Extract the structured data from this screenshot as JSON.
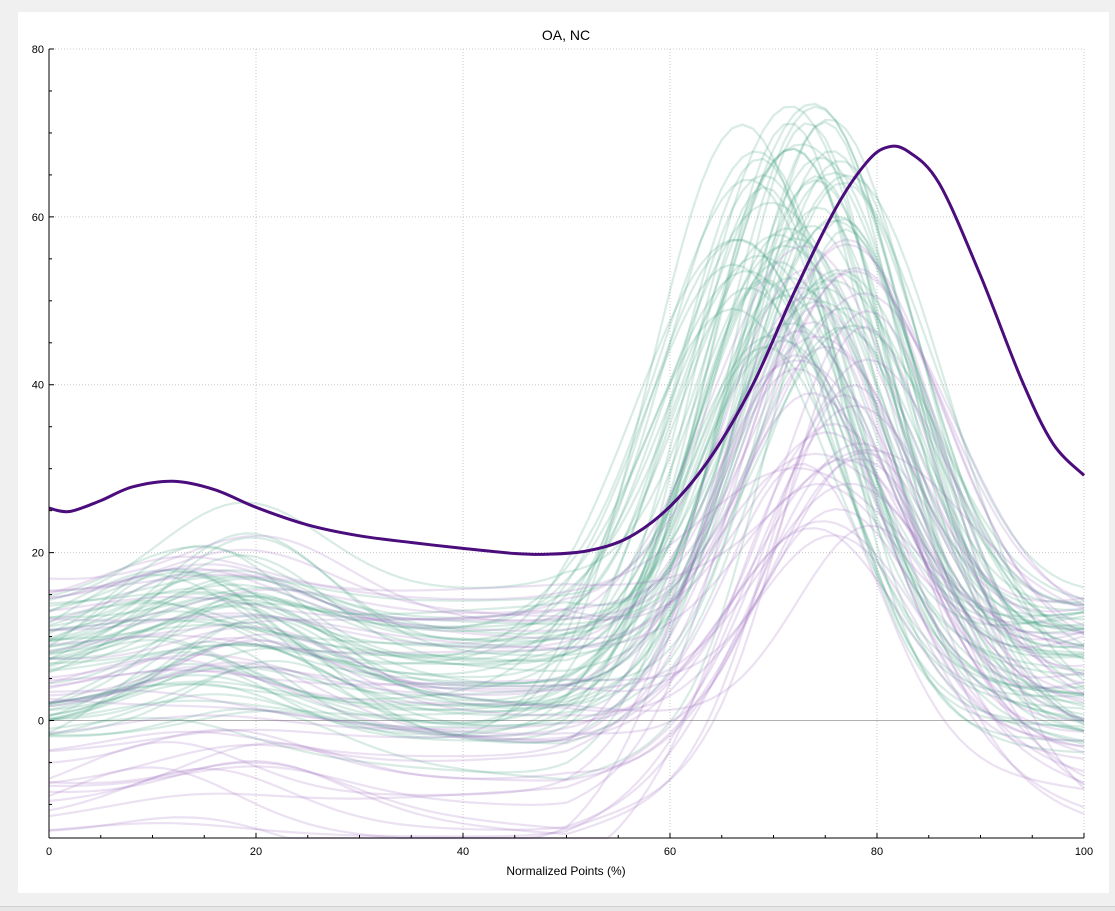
{
  "window": {
    "title": "OA, NC"
  },
  "colors": {
    "background": "#f0f0f0",
    "plot_bg": "#ffffff",
    "green_series": "#3a9c7c",
    "purple_series": "#9a6bbd",
    "mean_line": "#4b0c7c",
    "grid": "#c8c8c8",
    "zero_line": "#b0b0b0"
  },
  "chart_data": {
    "type": "line",
    "title": "OA, NC",
    "xlabel": "Normalized Points (%)",
    "ylabel": "",
    "xlim": [
      0,
      100
    ],
    "ylim": [
      -14,
      80
    ],
    "xticks": [
      0,
      20,
      40,
      60,
      80,
      100
    ],
    "yticks": [
      0,
      20,
      40,
      60,
      80
    ],
    "grid": true,
    "highlight_series": {
      "x": [
        0,
        2,
        5,
        8,
        12,
        16,
        20,
        25,
        30,
        35,
        40,
        45,
        48,
        52,
        56,
        60,
        64,
        68,
        72,
        76,
        79,
        81,
        83,
        86,
        90,
        94,
        97,
        100
      ],
      "y": [
        25.3,
        24.9,
        26.2,
        27.8,
        28.5,
        27.5,
        25.4,
        23.3,
        22.0,
        21.2,
        20.5,
        19.9,
        19.8,
        20.2,
        21.8,
        25.5,
        31.5,
        40.0,
        51.0,
        61.0,
        66.5,
        68.3,
        67.8,
        64.0,
        53.0,
        40.5,
        33.0,
        29.2
      ]
    },
    "background_series_groups": [
      {
        "group": "green",
        "count": 60,
        "baseline_range": [
          -4,
          14
        ],
        "early_bump_range": [
          2,
          14
        ],
        "peak_range": [
          44,
          74
        ],
        "peak_x_range": [
          66,
          78
        ],
        "end_range": [
          -4,
          14
        ]
      },
      {
        "group": "purple",
        "count": 40,
        "baseline_range": [
          -14,
          17
        ],
        "early_bump_range": [
          1,
          8
        ],
        "peak_range": [
          22,
          58
        ],
        "peak_x_range": [
          72,
          80
        ],
        "end_range": [
          -12,
          16
        ]
      }
    ]
  }
}
